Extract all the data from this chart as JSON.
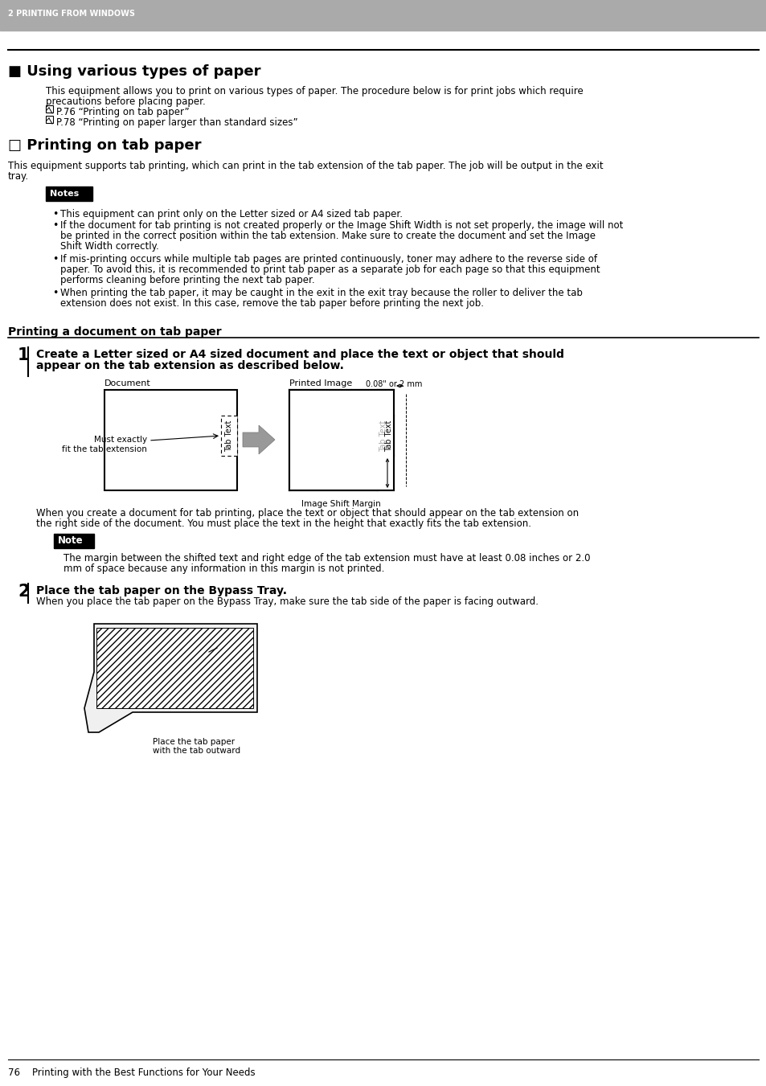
{
  "bg_color": "#ffffff",
  "header_bg": "#aaaaaa",
  "header_text": "2 PRINTING FROM WINDOWS",
  "header_text_color": "#ffffff",
  "title_main": "■ Using various types of paper",
  "body_intro1": "This equipment allows you to print on various types of paper. The procedure below is for print jobs which require",
  "body_intro2": "precautions before placing paper.",
  "ref1": "P.76 “Printing on tab paper”",
  "ref2": "P.78 “Printing on paper larger than standard sizes”",
  "section_title": "□ Printing on tab paper",
  "section_intro1": "This equipment supports tab printing, which can print in the tab extension of the tab paper. The job will be output in the exit",
  "section_intro2": "tray.",
  "notes_label": "Notes",
  "note_label": "Note",
  "note1": "This equipment can print only on the Letter sized or A4 sized tab paper.",
  "note2_1": "If the document for tab printing is not created properly or the Image Shift Width is not set properly, the image will not",
  "note2_2": "be printed in the correct position within the tab extension. Make sure to create the document and set the Image",
  "note2_3": "Shift Width correctly.",
  "note3_1": "If mis-printing occurs while multiple tab pages are printed continuously, toner may adhere to the reverse side of",
  "note3_2": "paper. To avoid this, it is recommended to print tab paper as a separate job for each page so that this equipment",
  "note3_3": "performs cleaning before printing the next tab paper.",
  "note4_1": "When printing the tab paper, it may be caught in the exit in the exit tray because the roller to deliver the tab",
  "note4_2": "extension does not exist. In this case, remove the tab paper before printing the next job.",
  "subsection_title": "Printing a document on tab paper",
  "step1_title1": "Create a Letter sized or A4 sized document and place the text or object that should",
  "step1_title2": "appear on the tab extension as described below.",
  "step1_desc1": "When you create a document for tab printing, place the text or object that should appear on the tab extension on",
  "step1_desc2": "the right side of the document. You must place the text in the height that exactly fits the tab extension.",
  "note_body1": "The margin between the shifted text and right edge of the tab extension must have at least 0.08 inches or 2.0",
  "note_body2": "mm of space because any information in this margin is not printed.",
  "step2_title": "Place the tab paper on the Bypass Tray.",
  "step2_desc": "When you place the tab paper on the Bypass Tray, make sure the tab side of the paper is facing outward.",
  "tray_label1": "Place the tab paper",
  "tray_label2": "with the tab outward",
  "diagram_doc_label": "Document",
  "diagram_print_label": "Printed Image",
  "diagram_margin_label": "0.08\" or 2 mm",
  "diagram_shift_label": "Image Shift Margin",
  "footer_line": "76    Printing with the Best Functions for Your Needs",
  "lm": 57,
  "rm": 925
}
